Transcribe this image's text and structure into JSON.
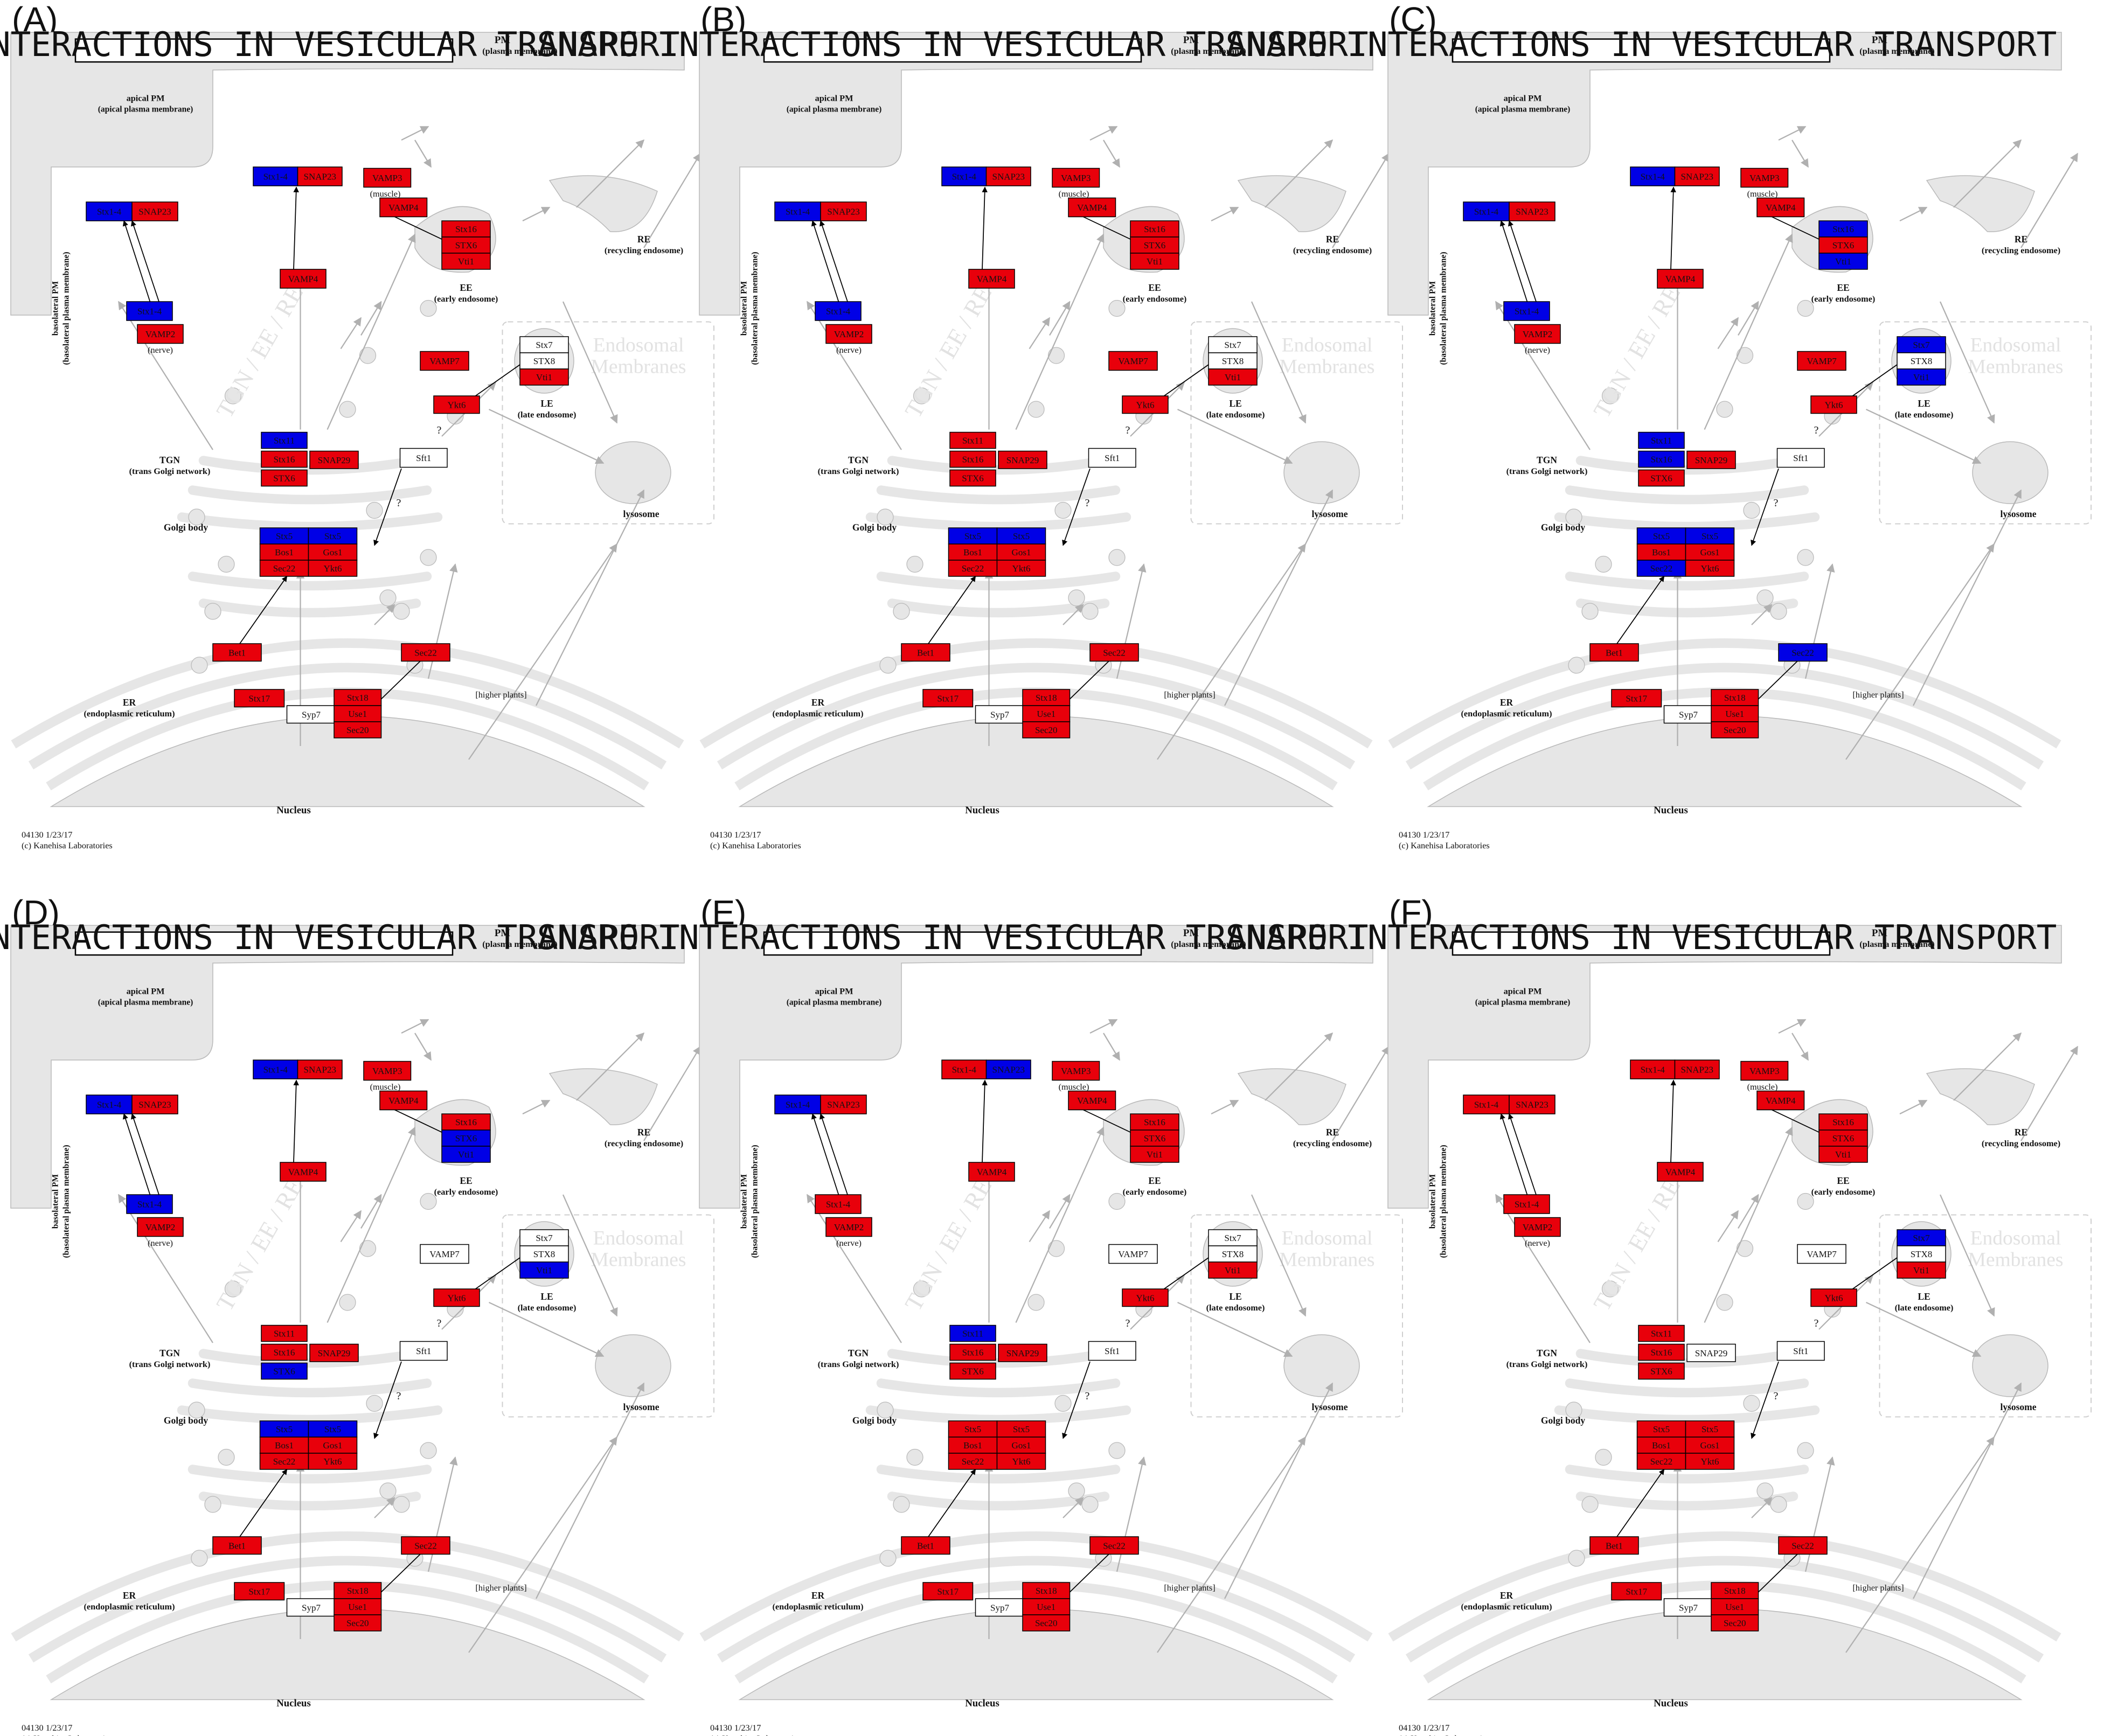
{
  "panels": [
    {
      "label": "(A)",
      "overrides": {
        "apicalSyn": "blue",
        "apicalSyn2": "blue",
        "basoSyn": "blue",
        "tgn1": "blue",
        "golgiL1": "blue",
        "golgiR1": "blue",
        "golgiR3": "red"
      }
    },
    {
      "label": "(B)",
      "overrides": {
        "apicalSyn": "blue",
        "apicalSyn2": "blue",
        "basoSyn": "blue",
        "golgiL1": "blue",
        "golgiR1": "blue"
      }
    },
    {
      "label": "(C)",
      "overrides": {
        "apicalSyn": "blue",
        "apicalSyn2": "blue",
        "basoSyn": "blue",
        "ee1": "blue",
        "ee3": "blue",
        "le1": "blue",
        "le3": "blue",
        "tgn1": "blue",
        "tgn2": "blue",
        "golgiL1": "blue",
        "golgiL3": "blue",
        "golgiR1": "blue",
        "sec22": "blue"
      }
    },
    {
      "label": "(D)",
      "overrides": {
        "apicalSyn": "blue",
        "apicalSyn2": "blue",
        "basoSyn": "blue",
        "ee2": "blue",
        "ee3": "blue",
        "le3": "blue",
        "tgn3": "blue",
        "golgiL1": "blue",
        "golgiR1": "blue",
        "vamp7le": "white"
      }
    },
    {
      "label": "(E)",
      "overrides": {
        "apicalSyn2": "blue",
        "snap23apical": "blue",
        "tgn1": "blue",
        "vamp7le": "white"
      }
    },
    {
      "label": "(F)",
      "overrides": {
        "le1": "blue",
        "vamp7le": "white",
        "snap29": "white"
      }
    }
  ],
  "diagram": {
    "title": "SNARE INTERACTIONS IN VESICULAR TRANSPORT",
    "pm": "PM",
    "pm_sub": "(plasma membrane)",
    "apical_pm": "apical PM",
    "apical_pm_sub": "(apical plasma membrane)",
    "baso_pm": "basolateral PM",
    "baso_pm_sub": "(basolateral plasma membrane)",
    "re": "RE",
    "re_sub": "(recycling endosome)",
    "ee": "EE",
    "ee_sub": "(early endosome)",
    "le": "LE",
    "le_sub": "(late endosome)",
    "tgn": "TGN",
    "tgn_sub": "(trans Golgi network)",
    "golgi": "Golgi body",
    "er": "ER",
    "er_sub": "(endoplasmic reticulum)",
    "nucleus": "Nucleus",
    "lysosome": "lysosome",
    "muscle": "(muscle)",
    "nerve": "(nerve)",
    "higher_plants": "[higher plants]",
    "watermark_diag": "TGN / EE / RE",
    "watermark_line1": "Endosomal",
    "watermark_line2": "Membranes",
    "question_mark": "?",
    "footer_id": "04130 1/23/17",
    "footer_copy": "(c) Kanehisa Laboratories"
  },
  "genes": {
    "apicalSyn": "Stx1-4",
    "snap23apical": "SNAP23",
    "apicalSyn2": "Stx1-4",
    "snap23b": "SNAP23",
    "vamp3": "VAMP3",
    "vamp4b": "VAMP4",
    "basoSyn": "Stx1-4",
    "vamp2": "VAMP2",
    "vamp4": "VAMP4",
    "ee1": "Stx16",
    "ee2": "STX6",
    "ee3": "Vti1",
    "vamp7le": "VAMP7",
    "vam6": "Ykt6",
    "le1": "Stx7",
    "le2": "STX8",
    "le3": "Vti1",
    "tgn1": "Stx11",
    "tgn2": "Stx16",
    "tgn3": "STX6",
    "snap29": "SNAP29",
    "sft1": "Sft1",
    "golgiL1": "Stx5",
    "golgiL2": "Bos1",
    "golgiL3": "Sec22",
    "golgiR1": "Stx5",
    "golgiR2": "Gos1",
    "golgiR3": "Ykt6",
    "bet1": "Bet1",
    "sec22": "Sec22",
    "stx17": "Stx17",
    "syp7": "Syp7",
    "er1": "Stx18",
    "er2": "Use1",
    "er3": "Sec20"
  },
  "default_colors": {
    "apicalSyn": "red",
    "snap23apical": "red",
    "apicalSyn2": "red",
    "snap23b": "red",
    "vamp3": "red",
    "vamp4b": "red",
    "basoSyn": "red",
    "vamp2": "red",
    "vamp4": "red",
    "ee1": "red",
    "ee2": "red",
    "ee3": "red",
    "vamp7le": "red",
    "vam6": "red",
    "le1": "white",
    "le2": "white",
    "le3": "red",
    "tgn1": "red",
    "tgn2": "red",
    "tgn3": "red",
    "snap29": "red",
    "sft1": "white",
    "golgiL1": "red",
    "golgiL2": "red",
    "golgiL3": "red",
    "golgiR1": "red",
    "golgiR2": "red",
    "golgiR3": "red",
    "bet1": "red",
    "sec22": "red",
    "stx17": "red",
    "syp7": "white",
    "er1": "red",
    "er2": "red",
    "er3": "red"
  },
  "colors": {
    "red": "#e8000b",
    "blue": "#0000e6",
    "white": "#ffffff",
    "membrane": "#e6e6e6",
    "membrane_stroke": "#b9b9b9",
    "arrow": "#b0b0b0"
  }
}
